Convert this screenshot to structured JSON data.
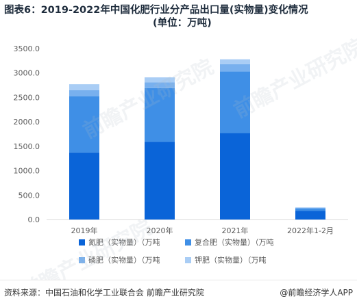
{
  "header": {
    "title_line1": "图表6：2019-2022年中国化肥行业分产品出口量(实物量)变化情况",
    "title_line2": "(单位：万吨)"
  },
  "footer": {
    "source": "资料来源：中国石油和化学工业联合会 前瞻产业研究院",
    "app": "@前瞻经济学人APP"
  },
  "watermark": {
    "text": "前瞻产业研究院"
  },
  "colors": {
    "nitrogen": "#0a64d8",
    "compound": "#3f8fe6",
    "phosphate": "#78b0ee",
    "potash": "#a9cdf5",
    "axis": "#d9d9d9",
    "grid": "#e6e6e6",
    "text": "#595959"
  },
  "chart_data": {
    "type": "bar",
    "stacked": true,
    "categories": [
      "2019年",
      "2020年",
      "2021年",
      "2022年1-2月"
    ],
    "series": [
      {
        "name": "氮肥（实物量）（万吨",
        "values": [
          1370,
          1590,
          1770,
          175
        ]
      },
      {
        "name": "复合肥（实物量）（万吨",
        "values": [
          1150,
          1100,
          1260,
          50
        ]
      },
      {
        "name": "磷肥（实物量）（万吨",
        "values": [
          130,
          120,
          150,
          15
        ]
      },
      {
        "name": "钾肥（实物量）（万吨",
        "values": [
          120,
          100,
          100,
          10
        ]
      }
    ],
    "ylim": [
      0,
      3500
    ],
    "yticks": [
      "0.0",
      "500.0",
      "1000.0",
      "1500.0",
      "2000.0",
      "2500.0",
      "3000.0",
      "3500.0"
    ],
    "grid": false,
    "legend_position": "bottom"
  }
}
